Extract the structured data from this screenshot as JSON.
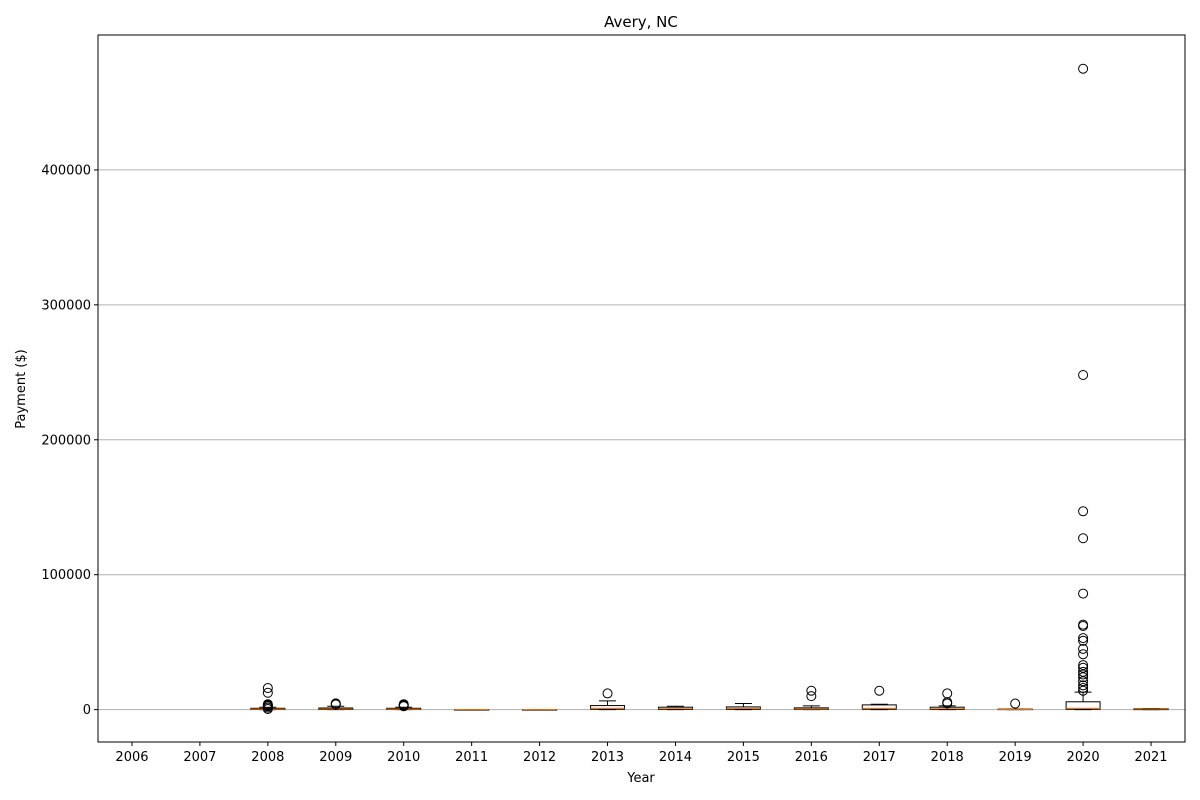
{
  "chart_data": {
    "type": "box",
    "title": "Avery, NC",
    "xlabel": "Year",
    "ylabel": "Payment ($)",
    "categories": [
      "2006",
      "2007",
      "2008",
      "2009",
      "2010",
      "2011",
      "2012",
      "2013",
      "2014",
      "2015",
      "2016",
      "2017",
      "2018",
      "2019",
      "2020",
      "2021"
    ],
    "ylim": [
      -24000,
      500000
    ],
    "yticks": [
      0,
      100000,
      200000,
      300000,
      400000
    ],
    "grid": "y",
    "colors": {
      "box": "#000000",
      "median": "#ff7f0e",
      "grid": "#b0b0b0"
    },
    "boxes": [
      {
        "year": "2006",
        "empty": true
      },
      {
        "year": "2007",
        "empty": true
      },
      {
        "year": "2008",
        "whislo": 0,
        "q1": 100,
        "med": 400,
        "q3": 1000,
        "whishi": 1800,
        "fliers": [
          500,
          1500,
          2500,
          3000,
          3500,
          4000,
          12500,
          16000
        ]
      },
      {
        "year": "2009",
        "whislo": 0,
        "q1": 100,
        "med": 500,
        "q3": 1200,
        "whishi": 2500,
        "fliers": [
          3800,
          4200,
          4600
        ]
      },
      {
        "year": "2010",
        "whislo": 0,
        "q1": 100,
        "med": 400,
        "q3": 1000,
        "whishi": 1800,
        "fliers": [
          2500,
          3000,
          3500,
          4000
        ]
      },
      {
        "year": "2011",
        "whislo": 0,
        "q1": 0,
        "med": 0,
        "q3": 0,
        "whishi": 0,
        "fliers": []
      },
      {
        "year": "2012",
        "whislo": 0,
        "q1": 0,
        "med": 0,
        "q3": 0,
        "whishi": 0,
        "fliers": []
      },
      {
        "year": "2013",
        "whislo": 0,
        "q1": 300,
        "med": 1000,
        "q3": 3000,
        "whishi": 6500,
        "fliers": [
          12000
        ]
      },
      {
        "year": "2014",
        "whislo": 0,
        "q1": 200,
        "med": 700,
        "q3": 1800,
        "whishi": 2500,
        "fliers": []
      },
      {
        "year": "2015",
        "whislo": 0,
        "q1": 300,
        "med": 900,
        "q3": 2000,
        "whishi": 4500,
        "fliers": []
      },
      {
        "year": "2016",
        "whislo": 0,
        "q1": 100,
        "med": 500,
        "q3": 1300,
        "whishi": 2800,
        "fliers": [
          10000,
          14000
        ]
      },
      {
        "year": "2017",
        "whislo": 0,
        "q1": 300,
        "med": 1000,
        "q3": 3500,
        "whishi": 4000,
        "fliers": [
          14000
        ]
      },
      {
        "year": "2018",
        "whislo": 0,
        "q1": 200,
        "med": 700,
        "q3": 1800,
        "whishi": 2800,
        "fliers": [
          4500,
          5500,
          12000
        ]
      },
      {
        "year": "2019",
        "whislo": 0,
        "q1": 0,
        "med": 200,
        "q3": 400,
        "whishi": 500,
        "fliers": [
          4500
        ]
      },
      {
        "year": "2020",
        "whislo": 0,
        "q1": 300,
        "med": 1000,
        "q3": 5800,
        "whishi": 13000,
        "fliers": [
          14000,
          16000,
          18000,
          21000,
          24000,
          26000,
          28000,
          31000,
          33000,
          41000,
          45000,
          51000,
          53000,
          62000,
          63000,
          86000,
          127000,
          147000,
          248000,
          475000
        ]
      },
      {
        "year": "2021",
        "whislo": 0,
        "q1": 0,
        "med": 500,
        "q3": 700,
        "whishi": 800,
        "fliers": []
      }
    ]
  }
}
